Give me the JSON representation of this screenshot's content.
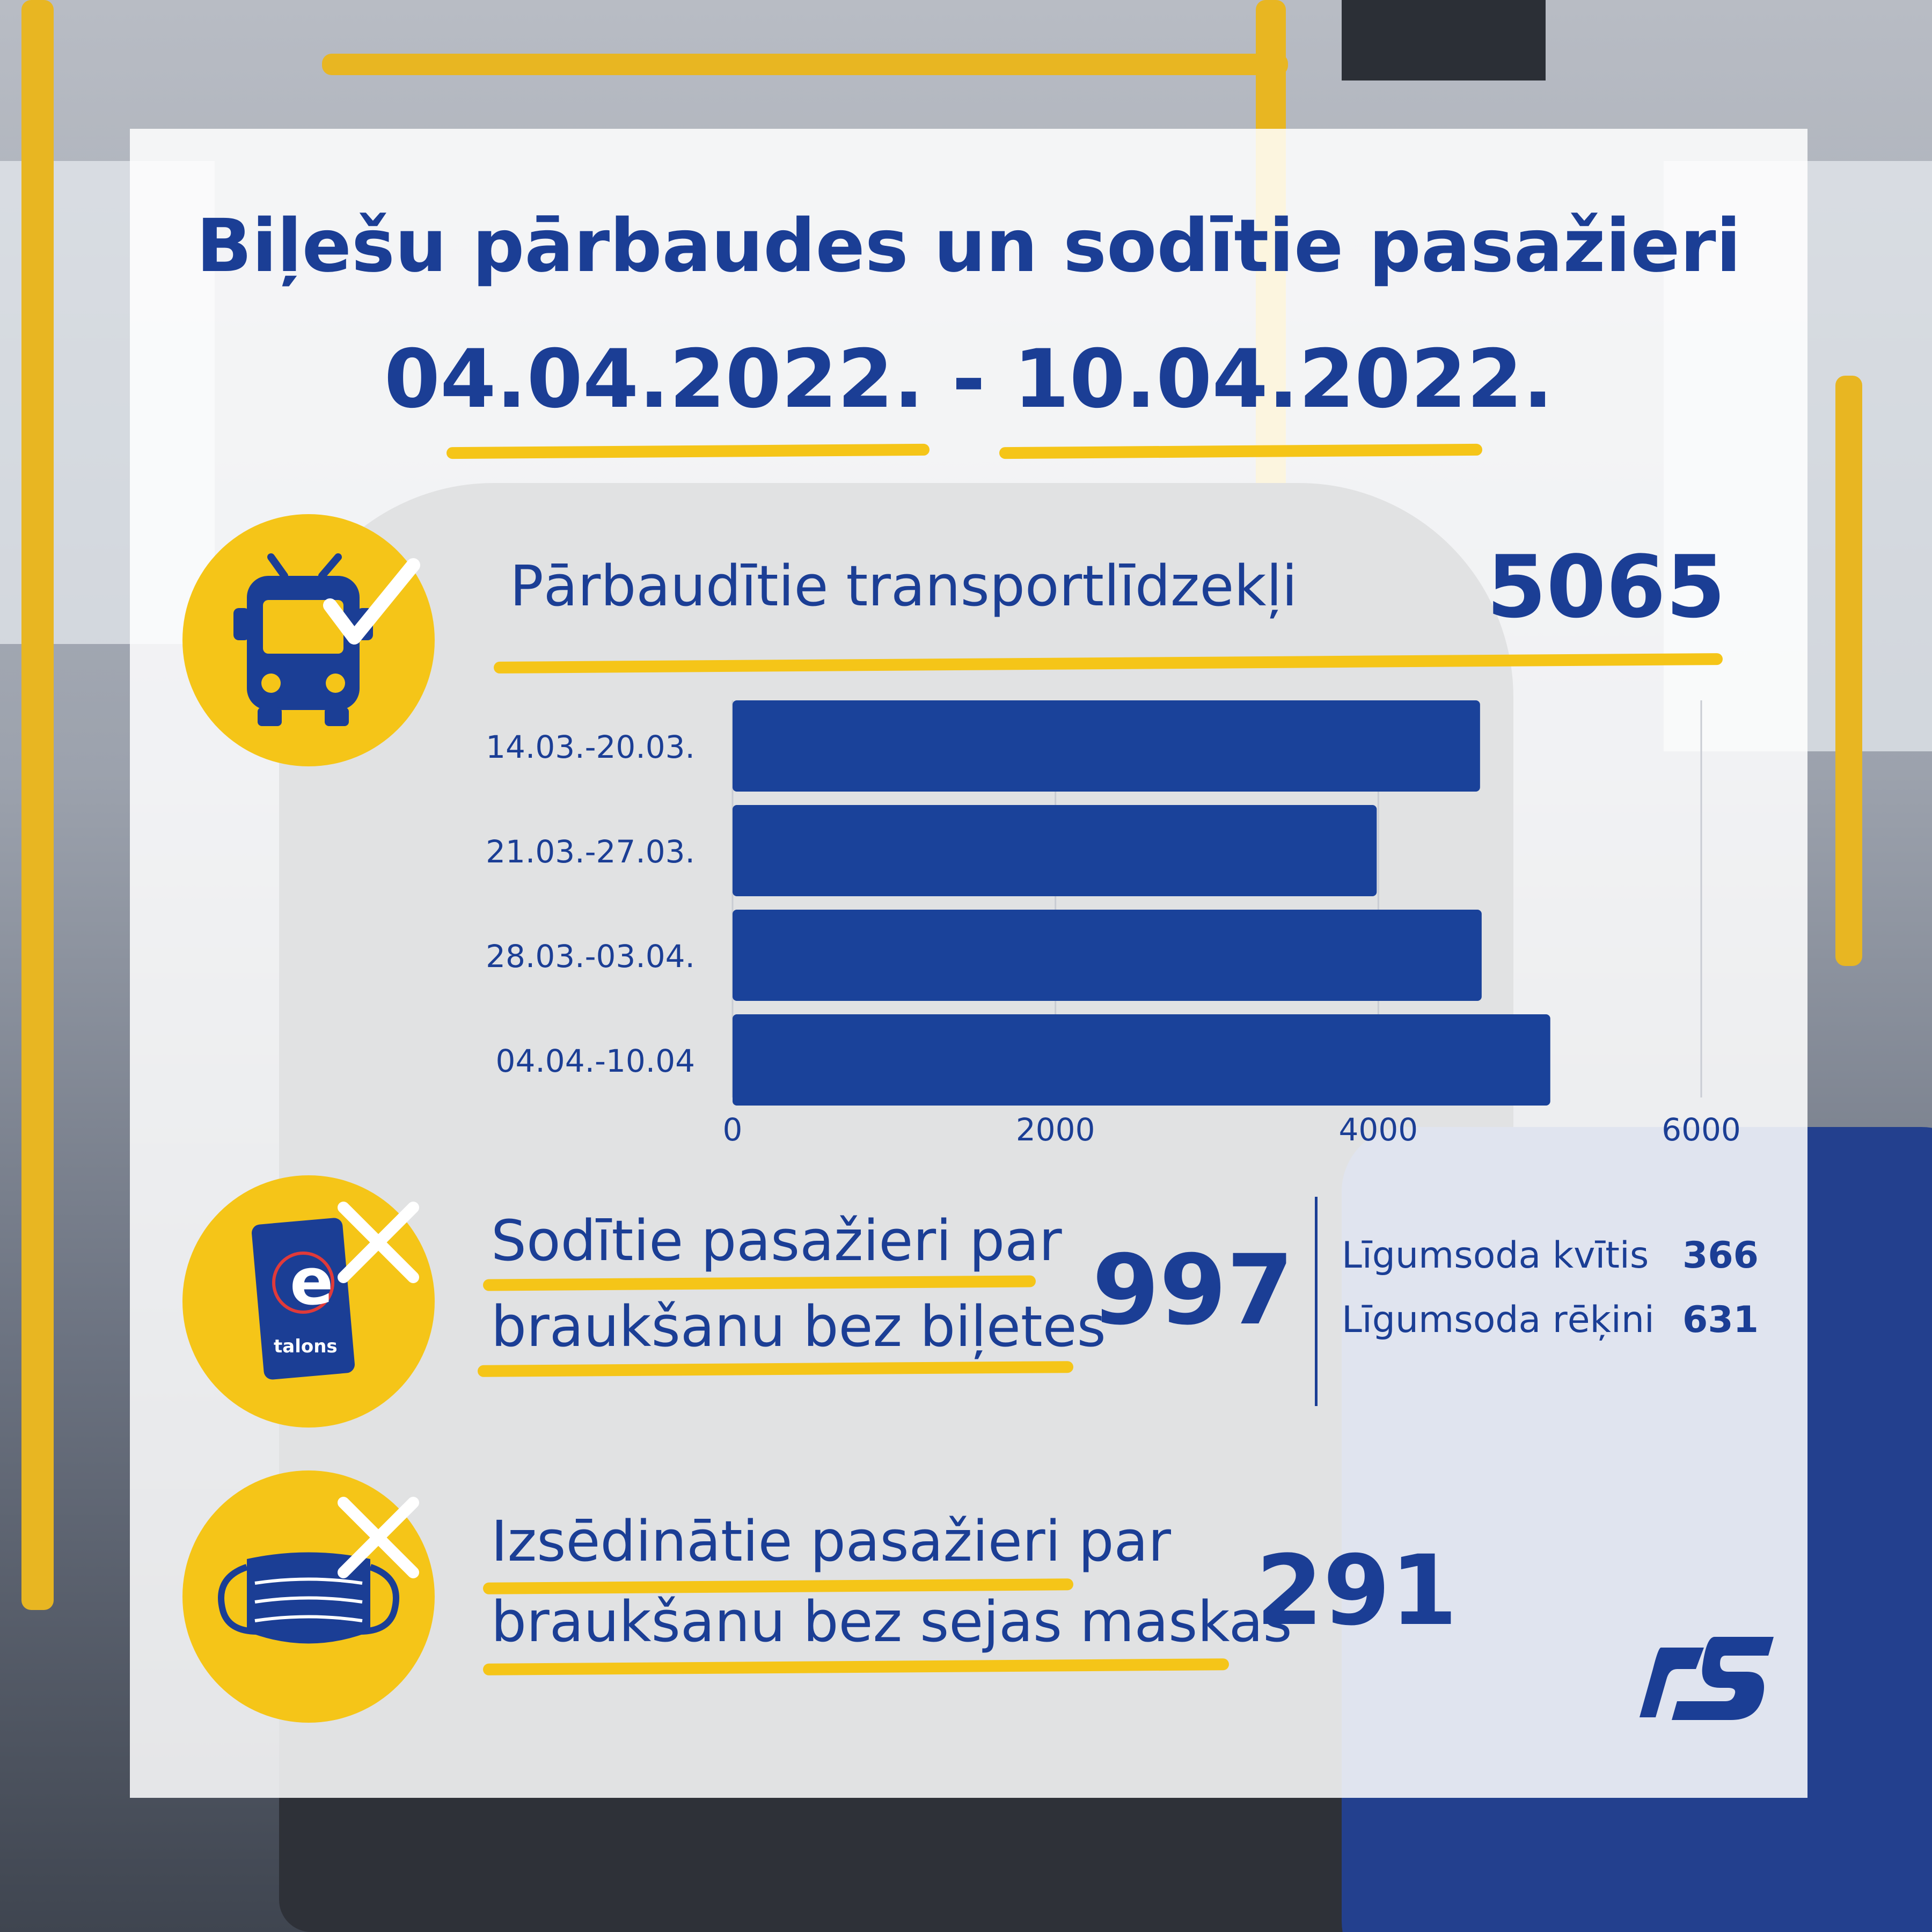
{
  "header": {
    "title": "Biļešu pārbaudes un sodītie pasažieri",
    "period": "04.04.2022. - 10.04.2022."
  },
  "vehicles": {
    "label": "Pārbaudītie transportlīdzekļi",
    "value": "5065",
    "icon": "bus-check-icon"
  },
  "fined": {
    "label_line1": "Sodītie pasažieri par",
    "label_line2": "braukšanu bez biļetes",
    "value": "997",
    "icon": "etalons-card-cross-icon",
    "card_text": "talons",
    "breakdown": [
      {
        "label": "Līgumsoda kvītis",
        "value": "366"
      },
      {
        "label": "Līgumsoda rēķini",
        "value": "631"
      }
    ]
  },
  "masks": {
    "label_line1": "Izsēdinātie pasažieri par",
    "label_line2": "braukšanu bez sejas maskas",
    "value": "291",
    "icon": "face-mask-cross-icon"
  },
  "logo": {
    "name": "rs-logo-icon"
  },
  "colors": {
    "primary": "#1b3e95",
    "accent": "#f5c518",
    "bar": "#1a429a"
  },
  "chart_data": {
    "type": "bar",
    "orientation": "horizontal",
    "categories": [
      "14.03.-20.03.",
      "21.03.-27.03.",
      "28.03.-03.04.",
      "04.04.-10.04"
    ],
    "values": [
      4630,
      3990,
      4640,
      5065
    ],
    "xticks": [
      0,
      2000,
      4000,
      6000
    ],
    "xlim": [
      0,
      6000
    ],
    "grid": true
  }
}
